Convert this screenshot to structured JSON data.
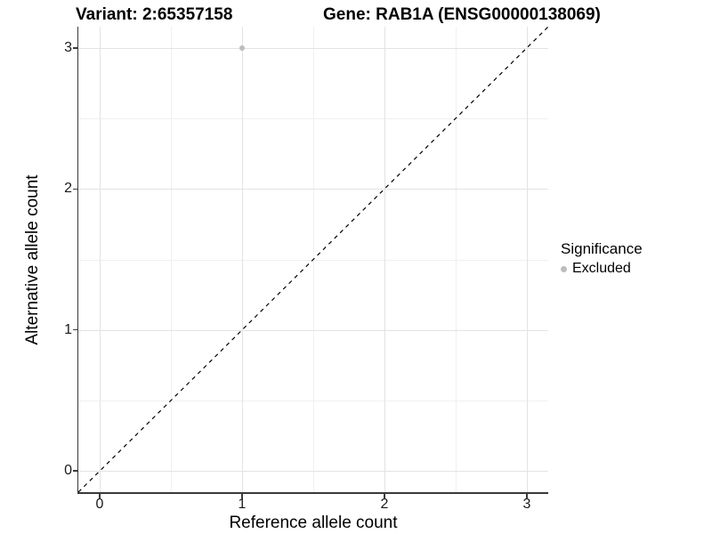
{
  "titles": {
    "variant": "Variant: 2:65357158",
    "gene": "Gene: RAB1A (ENSG00000138069)"
  },
  "legend": {
    "title": "Significance",
    "items": [
      {
        "label": "Excluded",
        "color": "#bdbdbd"
      }
    ]
  },
  "colors": {
    "grid_major": "#e3e3e3",
    "grid_minor": "#f0f0f0",
    "axis_line": "#3a3a3a",
    "tick_text": "#1a1a1a",
    "reference_line": "#000000"
  },
  "chart_data": {
    "type": "scatter",
    "title": "Variant: 2:65357158 | Gene: RAB1A (ENSG00000138069)",
    "xlabel": "Reference allele count",
    "ylabel": "Alternative allele count",
    "xlim": [
      -0.15,
      3.15
    ],
    "ylim": [
      -0.15,
      3.15
    ],
    "x_ticks": [
      0,
      1,
      2,
      3
    ],
    "y_ticks": [
      0,
      1,
      2,
      3
    ],
    "grid": true,
    "minor_grid": true,
    "legend_position": "right",
    "series": [
      {
        "name": "Excluded",
        "color": "#bdbdbd",
        "points": [
          [
            1,
            3
          ]
        ]
      }
    ],
    "reference_line": {
      "slope": 1,
      "intercept": 0,
      "style": "dashed",
      "color": "#000000"
    }
  }
}
